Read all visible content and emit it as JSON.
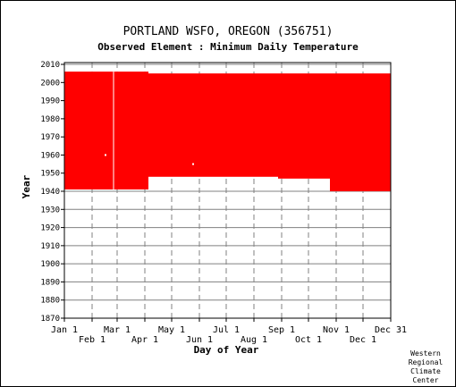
{
  "chart_data": {
    "type": "bar",
    "title": "PORTLAND WSFO, OREGON   (356751)",
    "subtitle": "Observed Element : Minimum Daily Temperature",
    "xlabel": "Day of Year",
    "ylabel": "Year",
    "ylim": [
      1870,
      2011
    ],
    "yticks": [
      1870,
      1880,
      1890,
      1900,
      1910,
      1920,
      1930,
      1940,
      1950,
      1960,
      1970,
      1980,
      1990,
      2000,
      2010
    ],
    "xlim": [
      1,
      366
    ],
    "xticks_top": [
      {
        "day": 1,
        "label": "Jan 1"
      },
      {
        "day": 60,
        "label": "Mar 1"
      },
      {
        "day": 121,
        "label": "May 1"
      },
      {
        "day": 182,
        "label": "Jul 1"
      },
      {
        "day": 244,
        "label": "Sep 1"
      },
      {
        "day": 305,
        "label": "Nov 1"
      },
      {
        "day": 366,
        "label": "Dec 31"
      }
    ],
    "xticks_bottom": [
      {
        "day": 32,
        "label": "Feb 1"
      },
      {
        "day": 91,
        "label": "Apr 1"
      },
      {
        "day": 152,
        "label": "Jun 1"
      },
      {
        "day": 213,
        "label": "Aug 1"
      },
      {
        "day": 274,
        "label": "Oct 1"
      },
      {
        "day": 335,
        "label": "Dec 1"
      }
    ],
    "grid": true,
    "colors": {
      "data": "#ff0000",
      "grid": "#808080",
      "background": "#ffffff"
    },
    "segments": [
      {
        "start_day": 1,
        "end_day": 89,
        "start_year": 1941,
        "end_year": 2006
      },
      {
        "start_day": 89,
        "end_day": 95,
        "start_year": 1941,
        "end_year": 2006
      },
      {
        "start_day": 95,
        "end_day": 240,
        "start_year": 1948,
        "end_year": 2005
      },
      {
        "start_day": 240,
        "end_day": 298,
        "start_year": 1947,
        "end_year": 2005
      },
      {
        "start_day": 298,
        "end_day": 366,
        "start_year": 1940,
        "end_year": 2005
      }
    ],
    "gaps": [
      {
        "day": 56,
        "start_year": 1941,
        "end_year": 2006
      },
      {
        "day": 47,
        "year": 1960
      },
      {
        "day": 145,
        "year": 1955
      }
    ]
  },
  "credit": [
    "Western",
    "Regional",
    "Climate",
    "Center"
  ]
}
